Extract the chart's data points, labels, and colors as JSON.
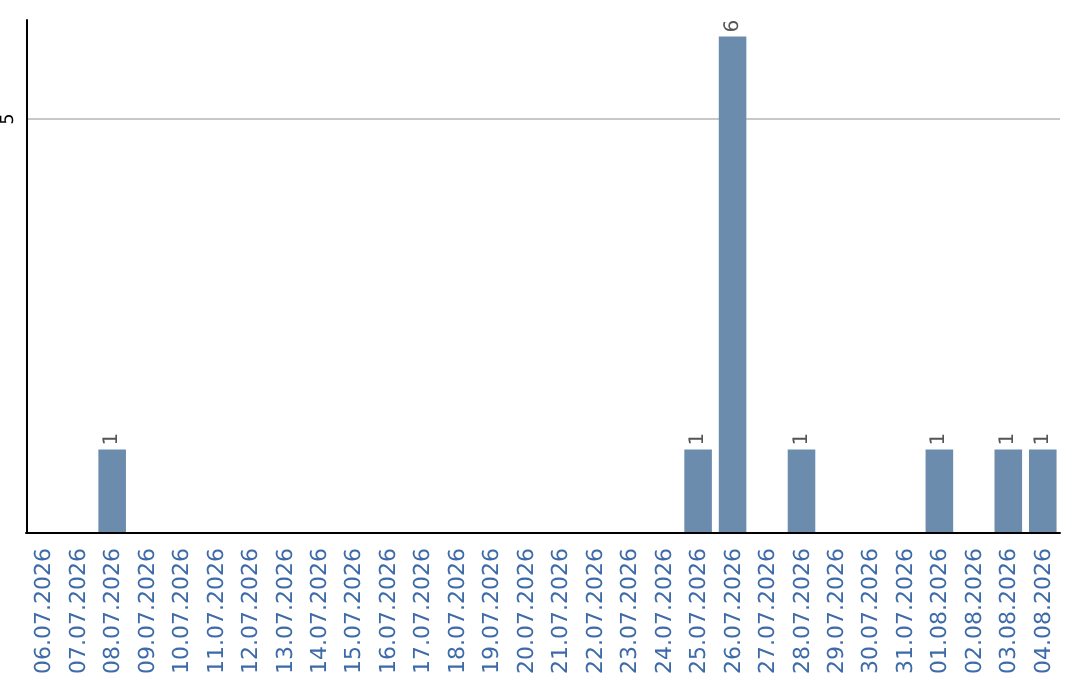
{
  "chart_data": {
    "type": "bar",
    "categories": [
      "06.07.2026",
      "07.07.2026",
      "08.07.2026",
      "09.07.2026",
      "10.07.2026",
      "11.07.2026",
      "12.07.2026",
      "13.07.2026",
      "14.07.2026",
      "15.07.2026",
      "16.07.2026",
      "17.07.2026",
      "18.07.2026",
      "19.07.2026",
      "20.07.2026",
      "21.07.2026",
      "22.07.2026",
      "23.07.2026",
      "24.07.2026",
      "25.07.2026",
      "26.07.2026",
      "27.07.2026",
      "28.07.2026",
      "29.07.2026",
      "30.07.2026",
      "31.07.2026",
      "01.08.2026",
      "02.08.2026",
      "03.08.2026",
      "04.08.2026"
    ],
    "values": [
      0,
      0,
      1,
      0,
      0,
      0,
      0,
      0,
      0,
      0,
      0,
      0,
      0,
      0,
      0,
      0,
      0,
      0,
      0,
      1,
      6,
      0,
      1,
      0,
      0,
      0,
      1,
      0,
      1,
      1
    ],
    "value_labels": [
      null,
      null,
      "1",
      null,
      null,
      null,
      null,
      null,
      null,
      null,
      null,
      null,
      null,
      null,
      null,
      null,
      null,
      null,
      null,
      "1",
      "6",
      null,
      "1",
      null,
      null,
      null,
      "1",
      null,
      "1",
      "1"
    ],
    "color": "#6b8cad",
    "ylim": [
      0,
      6.2
    ],
    "yticks": [
      5
    ],
    "grid": "y"
  }
}
